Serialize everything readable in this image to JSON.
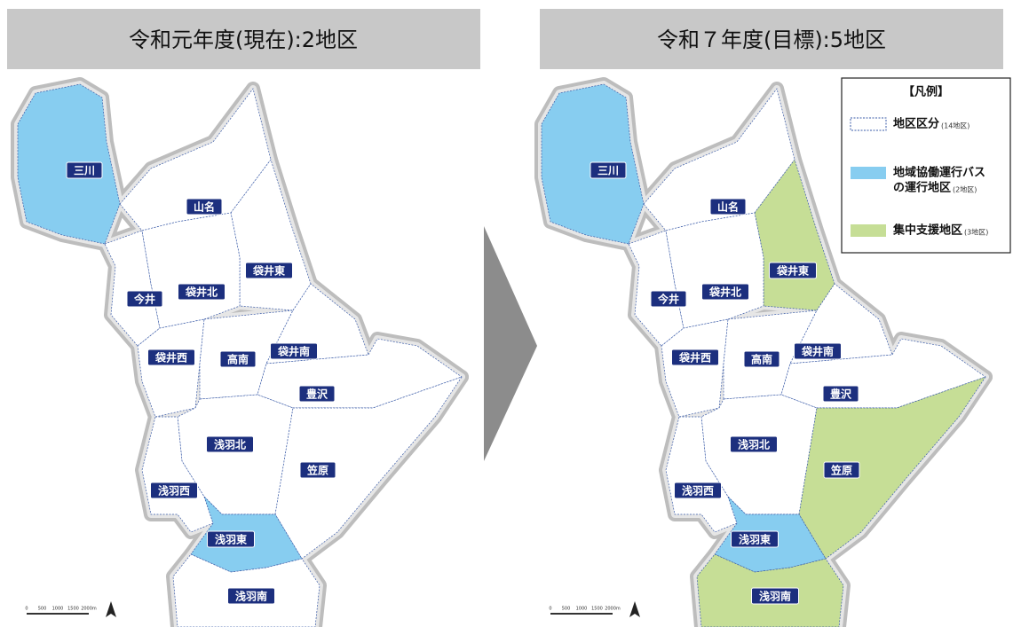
{
  "panels": [
    {
      "title": "令和元年度(現在):2地区",
      "districts": [
        {
          "name": "三川",
          "color": "#87cdf0"
        },
        {
          "name": "山名",
          "color": "#ffffff"
        },
        {
          "name": "袋井東",
          "color": "#ffffff"
        },
        {
          "name": "今井",
          "color": "#ffffff"
        },
        {
          "name": "袋井北",
          "color": "#ffffff"
        },
        {
          "name": "袋井西",
          "color": "#ffffff"
        },
        {
          "name": "高南",
          "color": "#ffffff"
        },
        {
          "name": "袋井南",
          "color": "#ffffff"
        },
        {
          "name": "豊沢",
          "color": "#ffffff"
        },
        {
          "name": "浅羽北",
          "color": "#ffffff"
        },
        {
          "name": "笠原",
          "color": "#ffffff"
        },
        {
          "name": "浅羽西",
          "color": "#ffffff"
        },
        {
          "name": "浅羽東",
          "color": "#87cdf0"
        },
        {
          "name": "浅羽南",
          "color": "#ffffff"
        }
      ]
    },
    {
      "title": "令和７年度(目標):5地区",
      "districts": [
        {
          "name": "三川",
          "color": "#87cdf0"
        },
        {
          "name": "山名",
          "color": "#ffffff"
        },
        {
          "name": "袋井東",
          "color": "#c6de96"
        },
        {
          "name": "今井",
          "color": "#ffffff"
        },
        {
          "name": "袋井北",
          "color": "#ffffff"
        },
        {
          "name": "袋井西",
          "color": "#ffffff"
        },
        {
          "name": "高南",
          "color": "#ffffff"
        },
        {
          "name": "袋井南",
          "color": "#ffffff"
        },
        {
          "name": "豊沢",
          "color": "#ffffff"
        },
        {
          "name": "浅羽北",
          "color": "#ffffff"
        },
        {
          "name": "笠原",
          "color": "#c6de96"
        },
        {
          "name": "浅羽西",
          "color": "#ffffff"
        },
        {
          "name": "浅羽東",
          "color": "#87cdf0"
        },
        {
          "name": "浅羽南",
          "color": "#c6de96"
        }
      ]
    }
  ],
  "scale_labels": [
    "0",
    "500",
    "1000",
    "1500",
    "2000m"
  ],
  "legend": {
    "title": "【凡例】",
    "items": [
      {
        "lines": [
          "地区区分"
        ],
        "note": "(14地区)",
        "color": "#ffffff"
      },
      {
        "lines": [
          "地域協働運行バス",
          "の運行地区"
        ],
        "note": "(2地区)",
        "color": "#87cdf0"
      },
      {
        "lines": [
          "集中支援地区"
        ],
        "note": "(3地区)",
        "color": "#c6de96"
      }
    ]
  }
}
